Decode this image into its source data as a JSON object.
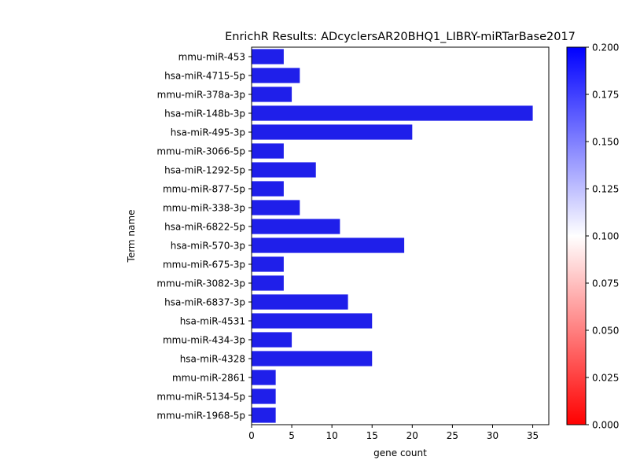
{
  "chart_data": {
    "type": "bar",
    "orientation": "horizontal",
    "title": "EnrichR Results: ADcyclersAR20BHQ1_LIBRY-miRTarBase2017",
    "xlabel": "gene count",
    "ylabel": "Term name",
    "xlim": [
      0,
      37
    ],
    "x_ticks": [
      0,
      5,
      10,
      15,
      20,
      25,
      30,
      35
    ],
    "grid": false,
    "bar_color": "#1f1fea",
    "categories": [
      "mmu-miR-453",
      "hsa-miR-4715-5p",
      "mmu-miR-378a-3p",
      "hsa-miR-148b-3p",
      "hsa-miR-495-3p",
      "mmu-miR-3066-5p",
      "hsa-miR-1292-5p",
      "mmu-miR-877-5p",
      "mmu-miR-338-3p",
      "hsa-miR-6822-5p",
      "hsa-miR-570-3p",
      "mmu-miR-675-3p",
      "mmu-miR-3082-3p",
      "hsa-miR-6837-3p",
      "hsa-miR-4531",
      "mmu-miR-434-3p",
      "hsa-miR-4328",
      "mmu-miR-2861",
      "mmu-miR-5134-5p",
      "mmu-miR-1968-5p"
    ],
    "values": [
      4,
      6,
      5,
      35,
      20,
      4,
      8,
      4,
      6,
      11,
      19,
      4,
      4,
      12,
      15,
      5,
      15,
      3,
      3,
      3
    ],
    "colorbar": {
      "range": [
        0.0,
        0.2
      ],
      "ticks": [
        "0.000",
        "0.025",
        "0.050",
        "0.075",
        "0.100",
        "0.125",
        "0.150",
        "0.175",
        "0.200"
      ],
      "colors": {
        "low": "#ff0000",
        "mid": "#ffffff",
        "high": "#0000ff"
      }
    }
  }
}
